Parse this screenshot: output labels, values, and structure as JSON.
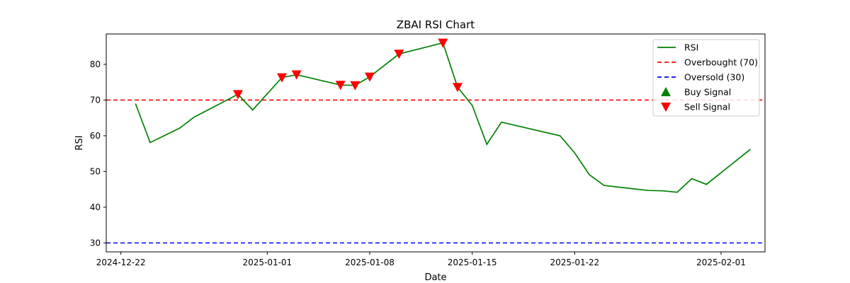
{
  "chart_data": {
    "type": "line",
    "title": "ZBAI RSI Chart",
    "xlabel": "Date",
    "ylabel": "RSI",
    "xlim": [
      "2024-12-21",
      "2025-02-04"
    ],
    "ylim": [
      27.5,
      88.5
    ],
    "x_ticks": [
      "2024-12-22",
      "2025-01-01",
      "2025-01-08",
      "2025-01-15",
      "2025-01-22",
      "2025-02-01"
    ],
    "y_ticks": [
      30,
      40,
      50,
      60,
      70,
      80
    ],
    "grid": false,
    "legend_position": "top-right",
    "series": [
      {
        "name": "RSI",
        "color": "#008000",
        "points": [
          {
            "x": "2024-12-23",
            "y": 69.0
          },
          {
            "x": "2024-12-24",
            "y": 58.1
          },
          {
            "x": "2024-12-26",
            "y": 62.1
          },
          {
            "x": "2024-12-27",
            "y": 65.2
          },
          {
            "x": "2024-12-30",
            "y": 71.6
          },
          {
            "x": "2024-12-31",
            "y": 67.2
          },
          {
            "x": "2025-01-02",
            "y": 76.3
          },
          {
            "x": "2025-01-03",
            "y": 77.1
          },
          {
            "x": "2025-01-06",
            "y": 74.2
          },
          {
            "x": "2025-01-07",
            "y": 74.1
          },
          {
            "x": "2025-01-08",
            "y": 76.5
          },
          {
            "x": "2025-01-10",
            "y": 82.9
          },
          {
            "x": "2025-01-13",
            "y": 86.0
          },
          {
            "x": "2025-01-14",
            "y": 73.6
          },
          {
            "x": "2025-01-15",
            "y": 68.5
          },
          {
            "x": "2025-01-16",
            "y": 57.6
          },
          {
            "x": "2025-01-17",
            "y": 63.8
          },
          {
            "x": "2025-01-21",
            "y": 60.0
          },
          {
            "x": "2025-01-22",
            "y": 55.2
          },
          {
            "x": "2025-01-23",
            "y": 49.1
          },
          {
            "x": "2025-01-24",
            "y": 46.1
          },
          {
            "x": "2025-01-27",
            "y": 44.7
          },
          {
            "x": "2025-01-28",
            "y": 44.6
          },
          {
            "x": "2025-01-29",
            "y": 44.2
          },
          {
            "x": "2025-01-30",
            "y": 48.0
          },
          {
            "x": "2025-01-31",
            "y": 46.4
          },
          {
            "x": "2025-02-03",
            "y": 56.2
          }
        ]
      },
      {
        "name": "Overbought (70)",
        "color": "#ff0000",
        "style": "dashed",
        "y": 70
      },
      {
        "name": "Oversold (30)",
        "color": "#0000ff",
        "style": "dashed",
        "y": 30
      },
      {
        "name": "Buy Signal",
        "color": "#008000",
        "marker": "triangle-up",
        "points": []
      },
      {
        "name": "Sell Signal",
        "color": "#ff0000",
        "marker": "triangle-down",
        "points": [
          {
            "x": "2024-12-30",
            "y": 71.6
          },
          {
            "x": "2025-01-02",
            "y": 76.3
          },
          {
            "x": "2025-01-03",
            "y": 77.1
          },
          {
            "x": "2025-01-06",
            "y": 74.2
          },
          {
            "x": "2025-01-07",
            "y": 74.1
          },
          {
            "x": "2025-01-08",
            "y": 76.5
          },
          {
            "x": "2025-01-10",
            "y": 82.9
          },
          {
            "x": "2025-01-13",
            "y": 86.0
          },
          {
            "x": "2025-01-14",
            "y": 73.6
          }
        ]
      }
    ]
  }
}
